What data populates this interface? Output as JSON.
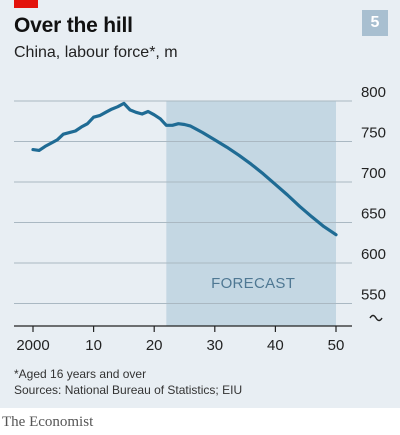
{
  "header": {
    "title": "Over the hill",
    "subtitle": "China, labour force*, m",
    "badge": "5"
  },
  "footer": {
    "footnote": "*Aged 16 years and over",
    "source": "Sources: National Bureau of Statistics; EIU",
    "brand": "The Economist"
  },
  "colors": {
    "background": "#e8eef3",
    "line": "#1f6b94",
    "forecast_shade": "#c4d7e3",
    "accent_red": "#e3120b"
  },
  "chart_data": {
    "type": "line",
    "title": "Over the hill",
    "subtitle": "China, labour force*, m",
    "xlabel": "",
    "ylabel": "",
    "x_ticks": [
      2000,
      2010,
      2020,
      2030,
      2040,
      2050
    ],
    "x_tick_labels": [
      "2000",
      "10",
      "20",
      "30",
      "40",
      "50"
    ],
    "y_ticks": [
      550,
      600,
      650,
      700,
      750,
      800
    ],
    "y_tick_labels": [
      "550",
      "600",
      "650",
      "700",
      "750",
      "800"
    ],
    "ylim": [
      520,
      800
    ],
    "xlim": [
      2000,
      2050
    ],
    "axis_break": true,
    "grid": "horizontal",
    "forecast": {
      "start": 2022,
      "end": 2050,
      "label": "FORECAST"
    },
    "series": [
      {
        "x": [
          2000,
          2001,
          2002,
          2003,
          2004,
          2005,
          2006,
          2007,
          2008,
          2009,
          2010,
          2011,
          2012,
          2013,
          2014,
          2015,
          2016,
          2017,
          2018,
          2019,
          2020,
          2021,
          2022,
          2023,
          2024,
          2025,
          2026,
          2028,
          2030,
          2032,
          2034,
          2036,
          2038,
          2040,
          2042,
          2044,
          2046,
          2048,
          2050
        ],
        "values": [
          740,
          739,
          744,
          748,
          752,
          759,
          761,
          763,
          768,
          772,
          780,
          782,
          786,
          790,
          793,
          797,
          789,
          786,
          784,
          787,
          783,
          778,
          770,
          770,
          772,
          771,
          769,
          761,
          752,
          743,
          733,
          722,
          710,
          697,
          684,
          670,
          657,
          645,
          635
        ]
      }
    ]
  }
}
